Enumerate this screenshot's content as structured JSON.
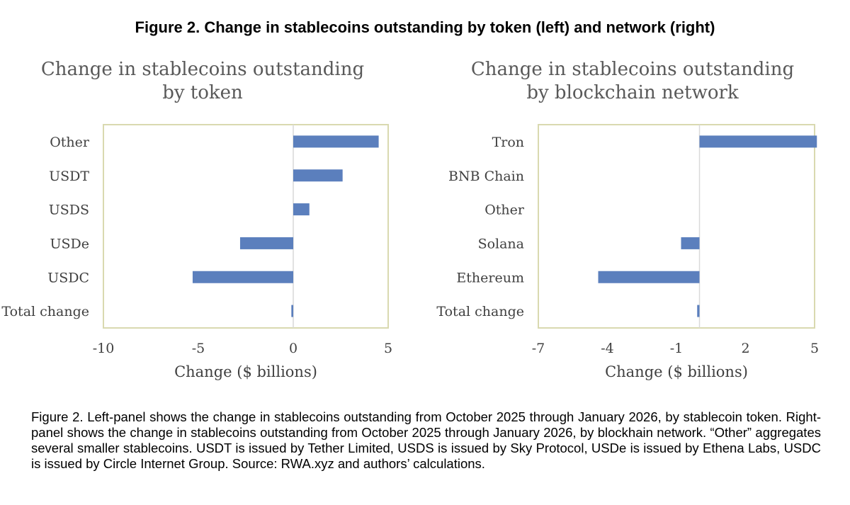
{
  "figure_title": "Figure 2. Change in stablecoins outstanding by token (left) and network (right)",
  "caption": "Figure 2.  Left-panel shows the change in stablecoins outstanding from October 2025 through January 2026, by stablecoin token.  Right-panel shows the change in stablecoins outstanding from October 2025 through January 2026, by blockhain network.  “Other” aggregates several smaller stablecoins.  USDT is issued by Tether Limited, USDS is issued by Sky Protocol, USDe is issued by Ethena Labs, USDC is issued by Circle Internet Group.  Source: RWA.xyz and authors’ calculations.",
  "colors": {
    "bar": "#5b7fbd",
    "frame": "#d9d9b0",
    "zero_line": "#d9d9d9"
  },
  "chart_data": [
    {
      "type": "bar",
      "orientation": "horizontal",
      "title_lines": [
        "Change in stablecoins outstanding",
        "by token"
      ],
      "categories": [
        "Other",
        "USDT",
        "USDS",
        "USDe",
        "USDC",
        "Total change"
      ],
      "values": [
        4.5,
        2.6,
        0.85,
        -2.8,
        -5.3,
        -0.1
      ],
      "xlabel": "Change ($ billions)",
      "ylabel": "",
      "xlim": [
        -10,
        5
      ],
      "xticks": [
        "-10",
        "-5",
        "0",
        "5"
      ],
      "grid": false,
      "legend": "none"
    },
    {
      "type": "bar",
      "orientation": "horizontal",
      "title_lines": [
        "Change in stablecoins outstanding",
        "by blockchain network"
      ],
      "categories": [
        "Tron",
        "BNB Chain",
        "Other",
        "Solana",
        "Ethereum",
        "Total change"
      ],
      "values": [
        5.1,
        0,
        0,
        -0.8,
        -4.4,
        -0.1
      ],
      "xlabel": "Change ($ billions)",
      "ylabel": "",
      "xlim": [
        -7,
        5
      ],
      "xticks": [
        "-7",
        "-4",
        "-1",
        "2",
        "5"
      ],
      "grid": false,
      "legend": "none"
    }
  ]
}
